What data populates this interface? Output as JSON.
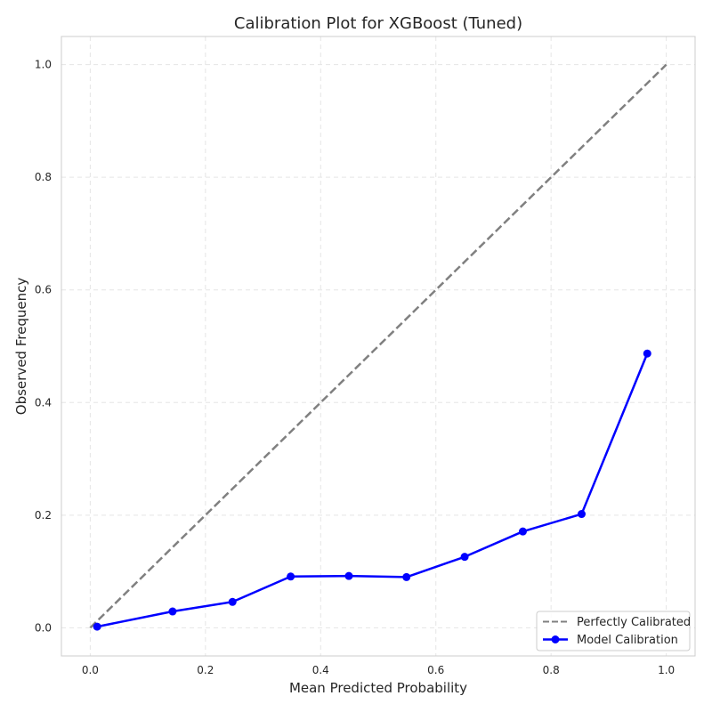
{
  "chart_data": {
    "type": "line",
    "title": "Calibration Plot for XGBoost (Tuned)",
    "xlabel": "Mean Predicted Probability",
    "ylabel": "Observed Frequency",
    "xlim": [
      -0.05,
      1.05
    ],
    "ylim": [
      -0.05,
      1.05
    ],
    "xticks": [
      0.0,
      0.2,
      0.4,
      0.6,
      0.8,
      1.0
    ],
    "yticks": [
      0.0,
      0.2,
      0.4,
      0.6,
      0.8,
      1.0
    ],
    "grid": true,
    "legend_position": "lower-right",
    "series": [
      {
        "name": "Perfectly Calibrated",
        "style": "dashed",
        "color": "#808080",
        "x": [
          0.0,
          1.0
        ],
        "y": [
          0.0,
          1.0
        ]
      },
      {
        "name": "Model Calibration",
        "style": "solid-markers",
        "color": "#0000ff",
        "x": [
          0.012,
          0.143,
          0.247,
          0.348,
          0.449,
          0.549,
          0.65,
          0.751,
          0.853,
          0.967
        ],
        "y": [
          0.002,
          0.029,
          0.046,
          0.091,
          0.092,
          0.09,
          0.126,
          0.171,
          0.202,
          0.487
        ]
      }
    ]
  }
}
